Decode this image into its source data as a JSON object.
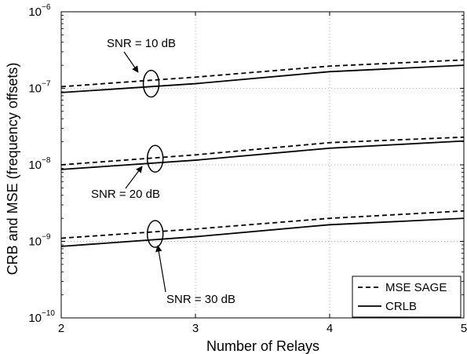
{
  "chart_data": {
    "type": "line",
    "title": "",
    "xlabel": "Number of Relays",
    "ylabel": "CRB and MSE (frequency offsets)",
    "xlim": [
      2,
      5
    ],
    "ylim": [
      1e-10,
      1e-06
    ],
    "yscale": "log",
    "grid": true,
    "x_ticks": [
      "2",
      "3",
      "4",
      "5"
    ],
    "y_ticks": [
      {
        "base": "10",
        "exp": "−10",
        "value": 1e-10
      },
      {
        "base": "10",
        "exp": "−9",
        "value": 1e-09
      },
      {
        "base": "10",
        "exp": "−8",
        "value": 1e-08
      },
      {
        "base": "10",
        "exp": "−7",
        "value": 1e-07
      },
      {
        "base": "10",
        "exp": "−6",
        "value": 1e-06
      }
    ],
    "x": [
      2,
      3,
      4,
      5
    ],
    "series": [
      {
        "name": "MSE SAGE",
        "group": "SNR = 10 dB",
        "style": "dashed",
        "values": [
          1.05e-07,
          1.4e-07,
          1.95e-07,
          2.35e-07
        ]
      },
      {
        "name": "CRLB",
        "group": "SNR = 10 dB",
        "style": "solid",
        "values": [
          8.8e-08,
          1.15e-07,
          1.65e-07,
          2e-07
        ]
      },
      {
        "name": "MSE SAGE",
        "group": "SNR = 20 dB",
        "style": "dashed",
        "values": [
          1e-08,
          1.35e-08,
          1.95e-08,
          2.3e-08
        ]
      },
      {
        "name": "CRLB",
        "group": "SNR = 20 dB",
        "style": "solid",
        "values": [
          8.7e-09,
          1.15e-08,
          1.65e-08,
          2.05e-08
        ]
      },
      {
        "name": "MSE SAGE",
        "group": "SNR = 30 dB",
        "style": "dashed",
        "values": [
          1.1e-09,
          1.45e-09,
          2e-09,
          2.5e-09
        ]
      },
      {
        "name": "CRLB",
        "group": "SNR = 30 dB",
        "style": "solid",
        "values": [
          8.6e-10,
          1.15e-09,
          1.65e-09,
          2e-09
        ]
      }
    ],
    "annotations": [
      {
        "text": "SNR = 10 dB",
        "marker_x": 2.67,
        "marker_y": 1.15e-07
      },
      {
        "text": "SNR = 20 dB",
        "marker_x": 2.7,
        "marker_y": 1.2e-08
      },
      {
        "text": "SNR = 30 dB",
        "marker_x": 2.7,
        "marker_y": 1.25e-09
      }
    ],
    "legend": {
      "placement": "bottom-right",
      "entries": [
        {
          "label": "MSE SAGE",
          "style": "dashed"
        },
        {
          "label": "CRLB",
          "style": "solid"
        }
      ]
    }
  }
}
